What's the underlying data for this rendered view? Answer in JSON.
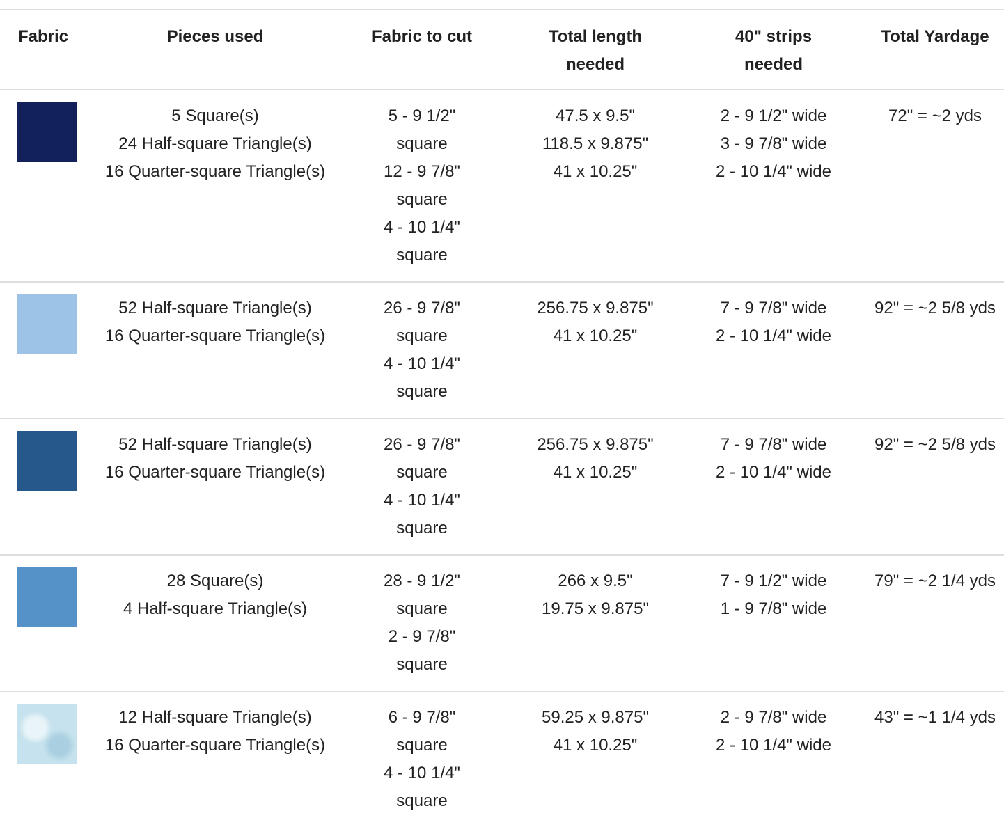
{
  "table": {
    "headers": [
      "Fabric",
      "Pieces used",
      "Fabric to cut",
      "Total length needed",
      "40\" strips needed",
      "Total Yardage"
    ],
    "rows": [
      {
        "swatch": "#13215a",
        "pieces": [
          "5 Square(s)",
          "24 Half-square Triangle(s)",
          "16 Quarter-square Triangle(s)"
        ],
        "cut": [
          "5 - 9 1/2\" square",
          "12 - 9 7/8\" square",
          "4 - 10 1/4\" square"
        ],
        "length": [
          "47.5 x 9.5\"",
          "118.5 x 9.875\"",
          "41 x 10.25\""
        ],
        "strips": [
          "2 - 9 1/2\" wide",
          "3 - 9 7/8\" wide",
          "2 - 10 1/4\" wide"
        ],
        "yardage": "72\" = ~2 yds"
      },
      {
        "swatch": "#9dc3e6",
        "pieces": [
          "52 Half-square Triangle(s)",
          "16 Quarter-square Triangle(s)"
        ],
        "cut": [
          "26 - 9 7/8\" square",
          "4 - 10 1/4\" square"
        ],
        "length": [
          "256.75 x 9.875\"",
          "41 x 10.25\""
        ],
        "strips": [
          "7 - 9 7/8\" wide",
          "2 - 10 1/4\" wide"
        ],
        "yardage": "92\" = ~2 5/8 yds"
      },
      {
        "swatch": "#27588b",
        "pieces": [
          "52 Half-square Triangle(s)",
          "16 Quarter-square Triangle(s)"
        ],
        "cut": [
          "26 - 9 7/8\" square",
          "4 - 10 1/4\" square"
        ],
        "length": [
          "256.75 x 9.875\"",
          "41 x 10.25\""
        ],
        "strips": [
          "7 - 9 7/8\" wide",
          "2 - 10 1/4\" wide"
        ],
        "yardage": "92\" = ~2 5/8 yds"
      },
      {
        "swatch": "#5592c8",
        "pieces": [
          "28 Square(s)",
          "4 Half-square Triangle(s)"
        ],
        "cut": [
          "28 - 9 1/2\" square",
          "2 - 9 7/8\" square"
        ],
        "length": [
          "266 x 9.5\"",
          "19.75 x 9.875\""
        ],
        "strips": [
          "7 - 9 1/2\" wide",
          "1 - 9 7/8\" wide"
        ],
        "yardage": "79\" = ~2 1/4 yds"
      },
      {
        "swatch": "#c6e2ee",
        "pieces": [
          "12 Half-square Triangle(s)",
          "16 Quarter-square Triangle(s)"
        ],
        "cut": [
          "6 - 9 7/8\" square",
          "4 - 10 1/4\" square"
        ],
        "length": [
          "59.25 x 9.875\"",
          "41 x 10.25\""
        ],
        "strips": [
          "2 - 9 7/8\" wide",
          "2 - 10 1/4\" wide"
        ],
        "yardage": "43\" = ~1 1/4 yds"
      }
    ]
  }
}
